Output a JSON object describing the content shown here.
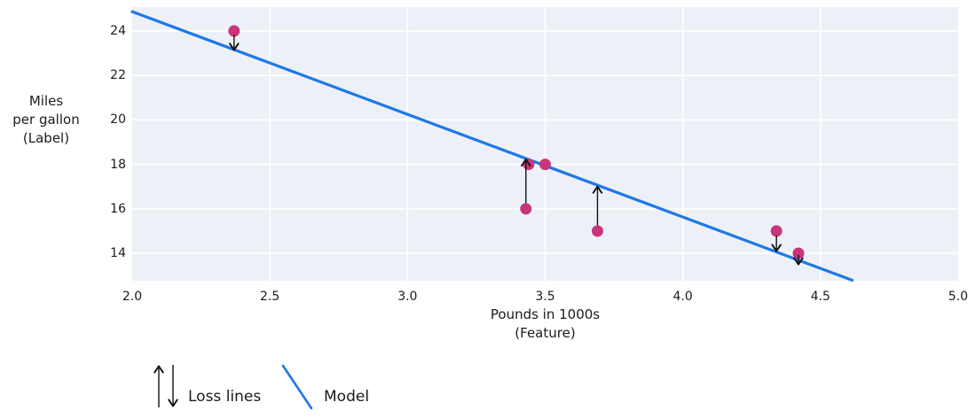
{
  "colors": {
    "plot_background": "#edf1f7",
    "grid": "#ffffff",
    "model_blue": "#1e78ea",
    "point_pink": "#ca347b",
    "arrow_black": "#111111",
    "text": "#1b1b1b"
  },
  "chart_data": {
    "type": "scatter",
    "title": "",
    "xlabel": "Pounds in 1000s\n(Feature)",
    "ylabel": "Miles\nper gallon\n(Label)",
    "xlim": [
      2.0,
      5.0
    ],
    "ylim": [
      12.8,
      25.1
    ],
    "grid": true,
    "x_ticks": [
      2.0,
      2.5,
      3.0,
      3.5,
      4.0,
      4.5,
      5.0
    ],
    "x_tick_labels": [
      "2.0",
      "2.5",
      "3.0",
      "3.5",
      "4.0",
      "4.5",
      "5.0"
    ],
    "y_ticks": [
      14,
      16,
      18,
      20,
      22,
      24
    ],
    "y_tick_labels": [
      "14",
      "16",
      "18",
      "20",
      "22",
      "24"
    ],
    "points": [
      {
        "x": 2.37,
        "y": 24
      },
      {
        "x": 3.43,
        "y": 16
      },
      {
        "x": 3.44,
        "y": 18
      },
      {
        "x": 3.5,
        "y": 18
      },
      {
        "x": 3.69,
        "y": 15
      },
      {
        "x": 4.34,
        "y": 15
      },
      {
        "x": 4.42,
        "y": 14
      }
    ],
    "model_line": {
      "x1": 2.0,
      "y1": 24.87,
      "x2": 4.615,
      "y2": 12.79,
      "slope": -4.62,
      "intercept": 34.11
    },
    "loss_arrows": [
      {
        "x": 2.37,
        "y_from": 23.82,
        "y_to": 23.17,
        "direction": "down"
      },
      {
        "x": 3.43,
        "y_from": 16.26,
        "y_to": 18.2,
        "direction": "up"
      },
      {
        "x": 3.69,
        "y_from": 15.26,
        "y_to": 16.98,
        "direction": "up"
      },
      {
        "x": 4.34,
        "y_from": 14.8,
        "y_to": 14.12,
        "direction": "down"
      },
      {
        "x": 4.42,
        "y_from": 13.93,
        "y_to": 13.52,
        "direction": "down"
      }
    ],
    "legend": {
      "loss_label": "Loss lines",
      "model_label": "Model"
    }
  }
}
